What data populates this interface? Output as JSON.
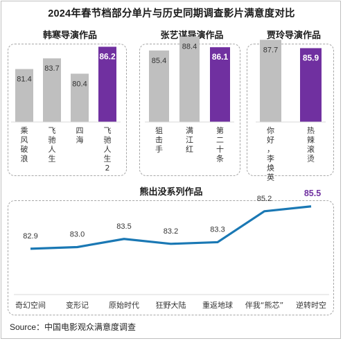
{
  "title": "2024年春节档部分单片与历史同期调查影片满意度对比",
  "source": "Source：中国电影观众满意度调查",
  "colors": {
    "bar": "#bfbfbf",
    "highlight": "#7030a0",
    "line": "#1a78b4",
    "text": "#333333"
  },
  "chart_data": [
    {
      "type": "bar",
      "title": "韩寒导演作品",
      "categories": [
        "乘风破浪",
        "飞驰人生",
        "四海",
        "飞驰人生2"
      ],
      "values": [
        81.4,
        83.7,
        80.4,
        86.2
      ],
      "highlight_index": 3
    },
    {
      "type": "bar",
      "title": "张艺谋导演作品",
      "categories": [
        "狙击手",
        "满江红",
        "第二十条"
      ],
      "values": [
        85.4,
        88.4,
        86.1
      ],
      "highlight_index": 2
    },
    {
      "type": "bar",
      "title": "贾玲导演作品",
      "categories": [
        "你好，李焕英",
        "热辣滚烫"
      ],
      "values": [
        87.7,
        85.9
      ],
      "highlight_index": 1
    },
    {
      "type": "line",
      "title": "熊出没系列作品",
      "categories": [
        "奇幻空间",
        "变形记",
        "原始时代",
        "狂野大陆",
        "重返地球",
        "伴我“熊芯”",
        "逆转时空"
      ],
      "values": [
        82.9,
        83.0,
        83.5,
        83.2,
        83.3,
        85.2,
        85.5
      ],
      "highlight_index": 6
    }
  ]
}
